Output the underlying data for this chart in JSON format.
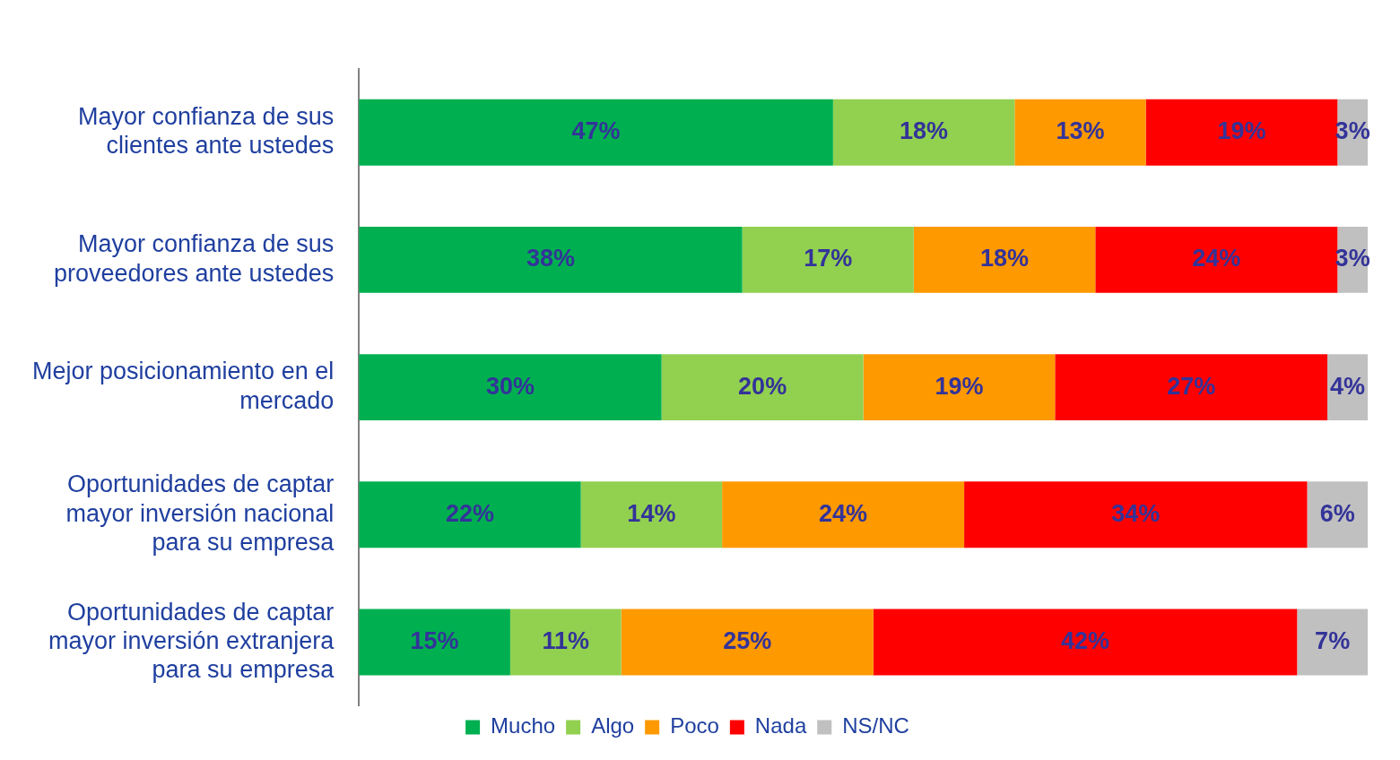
{
  "chart_data": {
    "type": "bar",
    "orientation": "horizontal",
    "stacked": true,
    "categories": [
      "Mayor confianza de sus clientes ante ustedes",
      "Mayor confianza de sus proveedores ante ustedes",
      "Mejor posicionamiento en el mercado",
      "Oportunidades de captar mayor inversión nacional para su empresa",
      "Oportunidades de captar mayor inversión extranjera para su empresa"
    ],
    "series": [
      {
        "name": "Mucho",
        "color": "#00b050",
        "values": [
          47,
          38,
          30,
          22,
          15
        ],
        "value_labels": [
          "47%",
          "38%",
          "30%",
          "22%",
          "15%"
        ]
      },
      {
        "name": "Algo",
        "color": "#92d050",
        "values": [
          18,
          17,
          20,
          14,
          11
        ],
        "value_labels": [
          "18%",
          "17%",
          "20%",
          "14%",
          "11%"
        ]
      },
      {
        "name": "Poco",
        "color": "#ff9900",
        "values": [
          13,
          18,
          19,
          24,
          25
        ],
        "value_labels": [
          "13%",
          "18%",
          "19%",
          "24%",
          "25%"
        ]
      },
      {
        "name": "Nada",
        "color": "#ff0000",
        "values": [
          19,
          24,
          27,
          34,
          42
        ],
        "value_labels": [
          "19%",
          "24%",
          "27%",
          "34%",
          "42%"
        ]
      },
      {
        "name": "NS/NC",
        "color": "#c0c0c0",
        "values": [
          3,
          3,
          4,
          6,
          7
        ],
        "value_labels": [
          "3%",
          "3%",
          "4%",
          "6%",
          "7%"
        ]
      }
    ],
    "xlim": [
      0,
      100
    ],
    "tick_labels": "y",
    "grid": false,
    "legend": "bottom"
  }
}
